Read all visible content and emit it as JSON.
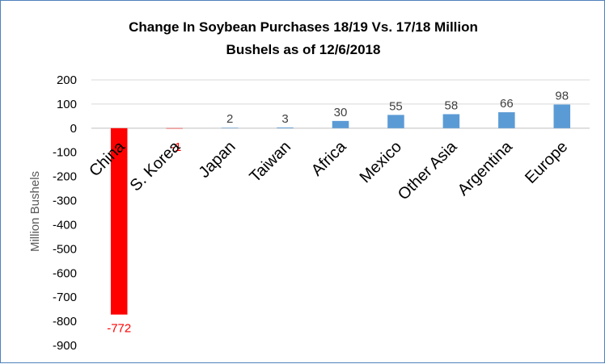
{
  "chart_data": {
    "type": "bar",
    "title_line1": "Change In Soybean Purchases 18/19 Vs. 17/18 Million",
    "title_line2": "Bushels as of 12/6/2018",
    "ylabel": "Million Bushels",
    "xlabel": "",
    "ylim": [
      -900,
      200
    ],
    "yticks": [
      200,
      100,
      0,
      -100,
      -200,
      -300,
      -400,
      -500,
      -600,
      -700,
      -800,
      -900
    ],
    "grid": true,
    "legend": "none",
    "categories": [
      "China",
      "S. Korea",
      "Japan",
      "Taiwan",
      "Africa",
      "Mexico",
      "Other Asia",
      "Argentina",
      "Europe"
    ],
    "values": [
      -772,
      -1,
      2,
      3,
      30,
      55,
      58,
      66,
      98
    ],
    "data_labels": [
      "-772",
      "-1",
      "2",
      "3",
      "30",
      "55",
      "58",
      "66",
      "98"
    ],
    "colors": {
      "positive": "#5b9bd5",
      "negative": "#ff0000",
      "negative_label": "#ff0000",
      "positive_label": "#404040",
      "gridline": "#d9d9d9",
      "border": "#4f81bd"
    }
  }
}
